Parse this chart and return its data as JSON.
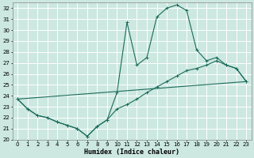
{
  "xlabel": "Humidex (Indice chaleur)",
  "xlim": [
    -0.5,
    23.5
  ],
  "ylim": [
    20,
    32.5
  ],
  "xticks": [
    0,
    1,
    2,
    3,
    4,
    5,
    6,
    7,
    8,
    9,
    10,
    11,
    12,
    13,
    14,
    15,
    16,
    17,
    18,
    19,
    20,
    21,
    22,
    23
  ],
  "yticks": [
    20,
    21,
    22,
    23,
    24,
    25,
    26,
    27,
    28,
    29,
    30,
    31,
    32
  ],
  "bg_color": "#cce8e0",
  "line_color": "#1a6b5a",
  "grid_color": "#ffffff",
  "curve1_x": [
    0,
    1,
    2,
    3,
    4,
    5,
    6,
    7,
    8,
    9,
    10,
    11,
    12,
    13,
    14,
    15,
    16,
    17,
    18,
    19,
    20,
    21,
    22,
    23
  ],
  "curve1_y": [
    23.7,
    22.8,
    22.2,
    22.0,
    21.6,
    21.3,
    21.0,
    20.3,
    21.2,
    21.8,
    24.3,
    30.7,
    26.8,
    27.5,
    31.2,
    32.0,
    32.3,
    31.8,
    28.2,
    27.2,
    27.5,
    26.8,
    26.5,
    25.3
  ],
  "curve2_x": [
    0,
    1,
    2,
    3,
    4,
    5,
    6,
    7,
    8,
    9,
    10,
    11,
    12,
    13,
    14,
    15,
    16,
    17,
    18,
    19,
    20,
    21,
    22,
    23
  ],
  "curve2_y": [
    23.7,
    22.8,
    22.2,
    22.0,
    21.6,
    21.3,
    21.0,
    20.3,
    21.2,
    21.8,
    22.8,
    23.2,
    23.7,
    24.3,
    24.8,
    25.3,
    25.8,
    26.3,
    26.5,
    26.8,
    27.2,
    26.8,
    26.5,
    25.3
  ],
  "curve3_x": [
    0,
    23
  ],
  "curve3_y": [
    23.7,
    25.3
  ]
}
